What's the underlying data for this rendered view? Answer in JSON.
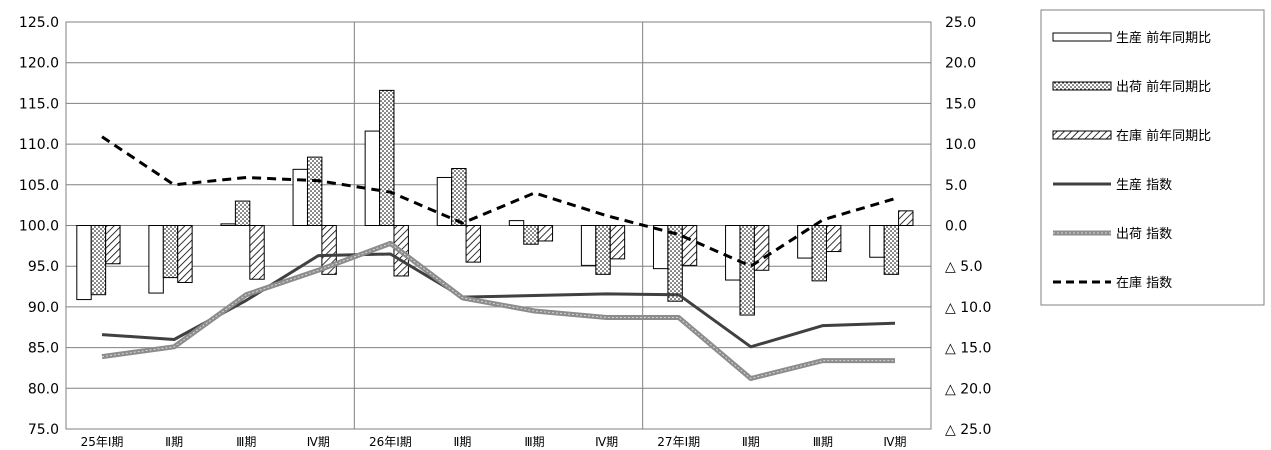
{
  "chart_data": {
    "type": "bar",
    "categories": [
      "25年Ⅰ期",
      "Ⅱ期",
      "Ⅲ期",
      "Ⅳ期",
      "26年Ⅰ期",
      "Ⅱ期",
      "Ⅲ期",
      "Ⅳ期",
      "27年Ⅰ期",
      "Ⅱ期",
      "Ⅲ期",
      "Ⅳ期"
    ],
    "year_groups": [
      "25年",
      "26年",
      "27年"
    ],
    "left_axis": {
      "range": [
        75,
        125
      ],
      "ticks": [
        "75.0",
        "80.0",
        "85.0",
        "90.0",
        "95.0",
        "100.0",
        "105.0",
        "110.0",
        "115.0",
        "120.0",
        "125.0"
      ]
    },
    "right_axis": {
      "range": [
        -25,
        25
      ],
      "ticks": [
        "△ 25.0",
        "△ 20.0",
        "△ 15.0",
        "△ 10.0",
        "△ 5.0",
        "0.0",
        "5.0",
        "10.0",
        "15.0",
        "20.0",
        "25.0"
      ]
    },
    "grid": true,
    "legend_position": "right",
    "bar_series": [
      {
        "name": "生産 前年同期比",
        "pattern": "hollow",
        "axis": "right",
        "values": [
          -9.1,
          -8.3,
          0.2,
          6.9,
          11.6,
          5.9,
          0.6,
          -4.9,
          -5.3,
          -6.7,
          -4.0,
          -3.9
        ]
      },
      {
        "name": "出荷 前年同期比",
        "pattern": "dotted",
        "axis": "right",
        "values": [
          -8.5,
          -6.4,
          3.0,
          8.4,
          16.6,
          7.0,
          -2.3,
          -6.0,
          -9.3,
          -11.0,
          -6.8,
          -6.0
        ]
      },
      {
        "name": "在庫 前年同期比",
        "pattern": "hatched",
        "axis": "right",
        "values": [
          -4.7,
          -7.0,
          -6.6,
          -6.0,
          -6.2,
          -4.5,
          -1.9,
          -4.1,
          -4.9,
          -5.5,
          -3.2,
          1.8
        ]
      }
    ],
    "line_series": [
      {
        "name": "生産 指数",
        "style": "solid",
        "color": "#404040",
        "axis": "left",
        "values": [
          86.6,
          86.0,
          90.8,
          96.3,
          96.5,
          91.2,
          91.4,
          91.6,
          91.5,
          85.1,
          87.7,
          88.0
        ]
      },
      {
        "name": "出荷 指数",
        "style": "double",
        "color": "#8c8c8c",
        "axis": "left",
        "values": [
          83.9,
          85.1,
          91.5,
          94.5,
          97.8,
          91.1,
          89.5,
          88.7,
          88.7,
          81.2,
          83.4,
          83.4
        ]
      },
      {
        "name": "在庫 指数",
        "style": "dashed",
        "color": "#000000",
        "axis": "right",
        "values": [
          10.9,
          5.0,
          5.9,
          5.5,
          4.1,
          0.3,
          4.0,
          1.2,
          -1.1,
          -5.0,
          0.7,
          3.3
        ]
      }
    ]
  }
}
